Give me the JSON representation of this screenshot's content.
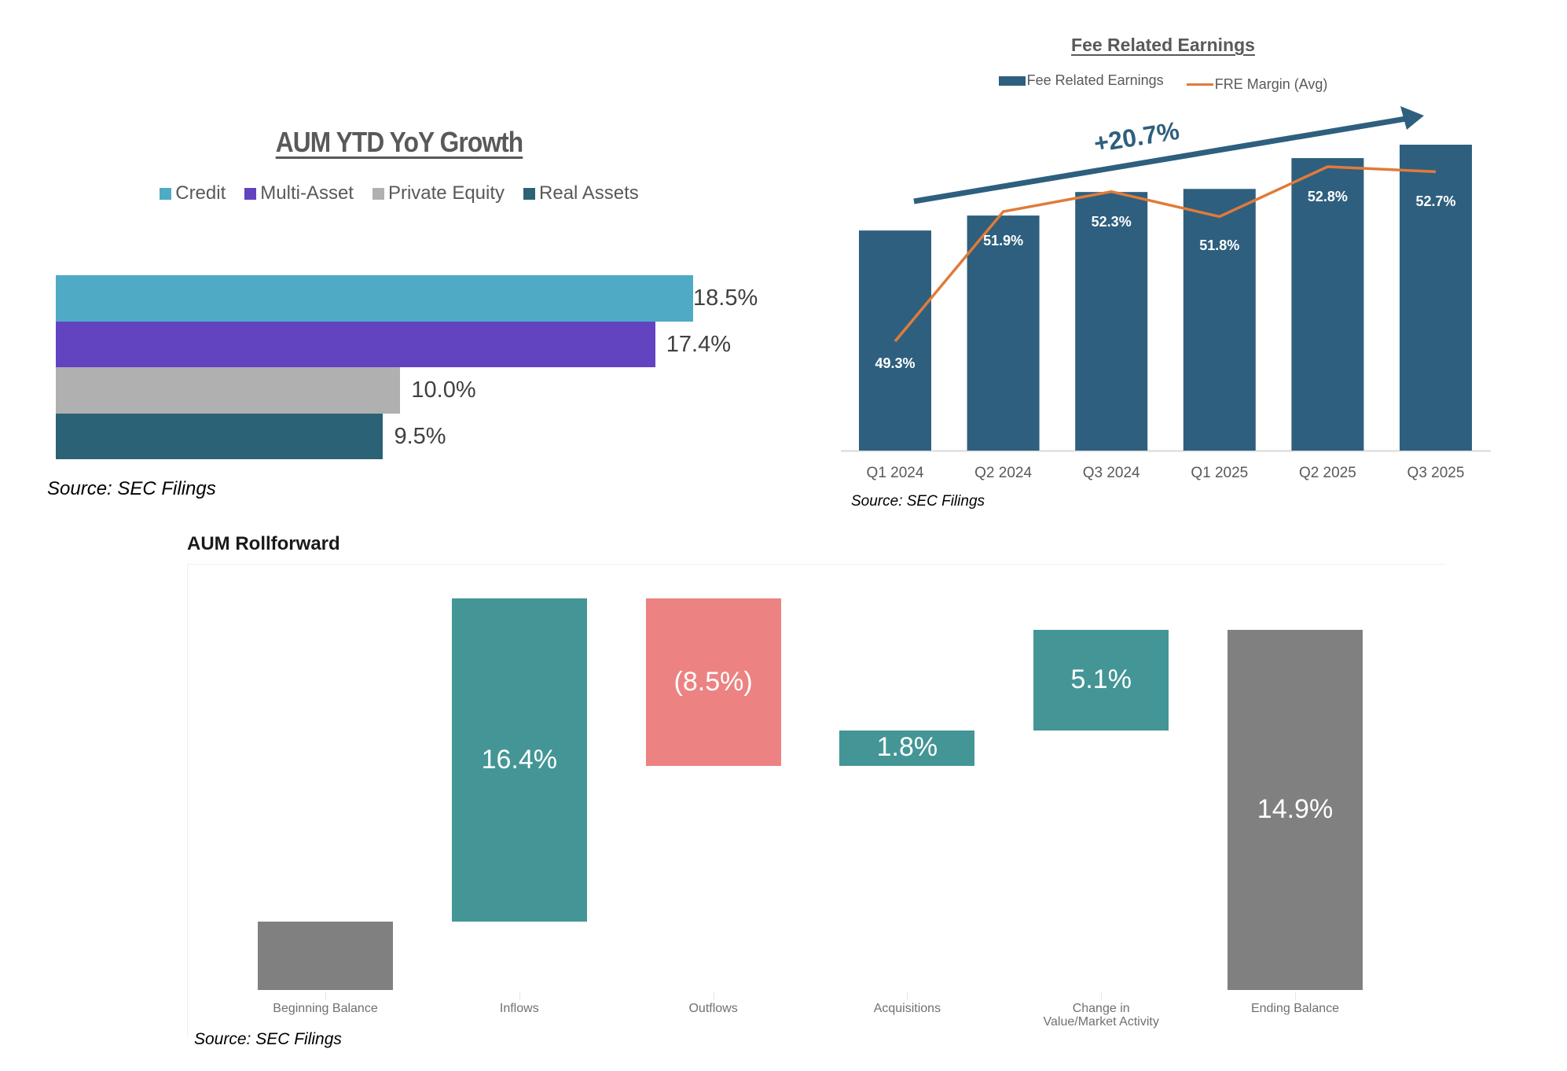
{
  "chart_data": [
    {
      "type": "bar",
      "orientation": "horizontal",
      "title": "AUM YTD YoY Growth",
      "categories": [
        "Credit",
        "Multi-Asset",
        "Private Equity",
        "Real Assets"
      ],
      "values": [
        18.5,
        17.4,
        10.0,
        9.5
      ],
      "labels": [
        "18.5%",
        "17.4%",
        "10.0%",
        "9.5%"
      ],
      "colors": [
        "#4FAAC6",
        "#6244C1",
        "#B0B0B0",
        "#2B6275"
      ],
      "legend": [
        "Credit",
        "Multi-Asset",
        "Private Equity",
        "Real Assets"
      ],
      "legend_position": "top",
      "xlabel": "",
      "ylabel": "",
      "grid": false,
      "source": "Source: SEC Filings"
    },
    {
      "type": "bar",
      "title": "Fee Related Earnings",
      "categories": [
        "Q1 2024",
        "Q2 2024",
        "Q3 2024",
        "Q1 2025",
        "Q2 2025",
        "Q3 2025"
      ],
      "series": [
        {
          "name": "Fee Related Earnings",
          "type": "bar",
          "color": "#2E5F7E",
          "values": [
            100,
            106.8,
            117.5,
            118.9,
            132.9,
            139.0
          ]
        },
        {
          "name": "FRE Margin (Avg)",
          "type": "line",
          "color": "#E07B39",
          "values": [
            49.3,
            51.9,
            52.3,
            51.8,
            52.8,
            52.7
          ],
          "labels": [
            "49.3%",
            "51.9%",
            "52.3%",
            "51.8%",
            "52.8%",
            "52.7%"
          ]
        }
      ],
      "annotation": {
        "text": "+20.7%",
        "type": "arrow",
        "color": "#2E5F7E"
      },
      "legend": [
        "Fee Related Earnings",
        "FRE Margin (Avg)"
      ],
      "legend_position": "top",
      "line_range": [
        47,
        54
      ],
      "grid": false,
      "source": "Source: SEC Filings"
    },
    {
      "type": "bar",
      "subtype": "waterfall",
      "title": "AUM Rollforward",
      "categories": [
        "Beginning Balance",
        "Inflows",
        "Outflows",
        "Acquisitions",
        "Change in Value/Market Activity",
        "Ending Balance"
      ],
      "category_lines": [
        [
          "Beginning Balance"
        ],
        [
          "Inflows"
        ],
        [
          "Outflows"
        ],
        [
          "Acquisitions"
        ],
        [
          "Change in",
          "Value/Market Activity"
        ],
        [
          "Ending Balance"
        ]
      ],
      "values": [
        null,
        16.4,
        -8.5,
        1.8,
        5.1,
        14.9
      ],
      "labels": [
        "",
        "16.4%",
        "(8.5%)",
        "1.8%",
        "5.1%",
        "14.9%"
      ],
      "colors": {
        "total": "#808080",
        "increase": "#449596",
        "decrease": "#EC8282"
      },
      "kinds": [
        "total",
        "increase",
        "decrease",
        "increase",
        "increase",
        "total"
      ],
      "grid": false,
      "source": "Source: SEC Filings"
    }
  ]
}
